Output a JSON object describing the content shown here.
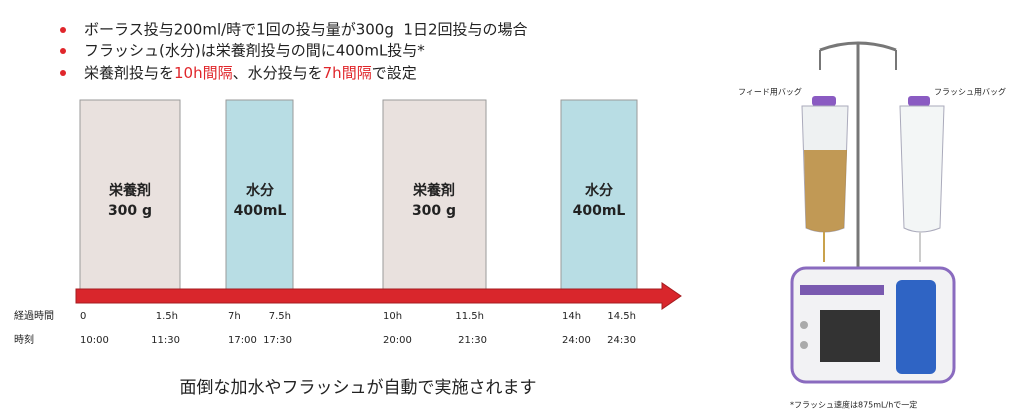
{
  "bullets": [
    {
      "segments": [
        {
          "text": "ボーラス投与200ml/時で1回の投与量が300g  1日2回投与の場合"
        }
      ]
    },
    {
      "segments": [
        {
          "text": "フラッシュ(水分)は栄養剤投与の間に400mL投与*"
        }
      ]
    },
    {
      "segments": [
        {
          "text": "栄養剤投与を"
        },
        {
          "text": "10h間隔"
        },
        {
          "text": "、水分投与を"
        },
        {
          "text": "7h間隔"
        },
        {
          "text": "で設定"
        }
      ]
    }
  ],
  "blocks": [
    {
      "label": "栄養剤",
      "amount": "300 g"
    },
    {
      "label": "水分",
      "amount": "400mL"
    },
    {
      "label": "栄養剤",
      "amount": "300 g"
    },
    {
      "label": "水分",
      "amount": "400mL"
    }
  ],
  "timeline": {
    "elapsed_label": "経過時間",
    "time_label": "時刻",
    "elapsed": [
      "0",
      "1.5h",
      "7h",
      "7.5h",
      "10h",
      "11.5h",
      "14h",
      "14.5h"
    ],
    "times": [
      "10:00",
      "11:30",
      "17:00",
      "17:30",
      "20:00",
      "21:30",
      "24:00",
      "24:30"
    ]
  },
  "caption": "面倒な加水やフラッシュが自動で実施されます",
  "image": {
    "feed_bag_label": "フィード用バッグ",
    "flush_bag_label": "フラッシュ用バッグ",
    "footnote": "*フラッシュ速度は875mL/hで一定"
  }
}
